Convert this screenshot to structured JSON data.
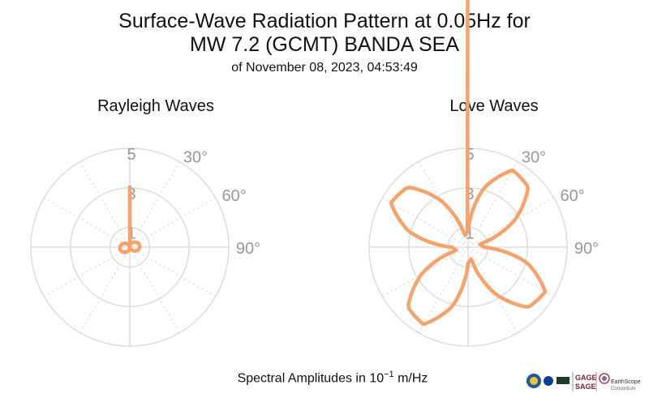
{
  "title_line1": "Surface-Wave Radiation Pattern at 0.05Hz for",
  "title_line2": "MW 7.2 (GCMT) BANDA SEA",
  "subtitle": "of November 08, 2023, 04:53:49",
  "footer": {
    "prefix": "Spectral Amplitudes in 10",
    "exponent": "−1",
    "suffix": " m/Hz"
  },
  "logos": {
    "gage": "GAGE",
    "sage": "SAGE",
    "earthscope": "EarthScope",
    "consortium": "Consortium"
  },
  "chart_data": [
    {
      "type": "polar-line",
      "title": "Rayleigh Waves",
      "radial_ticks": [
        1,
        3,
        5
      ],
      "radial_max": 5,
      "angular_ticks": [
        "30°",
        "60°",
        "90°"
      ],
      "color": "#f5a26b",
      "grid": true,
      "theta_deg": [
        0,
        15,
        30,
        45,
        60,
        75,
        90,
        105,
        120,
        135,
        150,
        165,
        180,
        195,
        210,
        225,
        240,
        255,
        270,
        285,
        300,
        315,
        330,
        345
      ],
      "r": [
        0.0,
        0.13,
        0.26,
        0.37,
        0.45,
        0.5,
        0.5,
        0.45,
        0.37,
        0.26,
        0.13,
        0.0,
        0.0,
        0.13,
        0.26,
        0.37,
        0.45,
        0.5,
        0.5,
        0.45,
        0.37,
        0.26,
        0.13,
        0.0
      ]
    },
    {
      "type": "polar-line",
      "title": "Love Waves",
      "radial_ticks": [
        1,
        3,
        5
      ],
      "radial_max": 5,
      "angular_ticks": [
        "30°",
        "60°",
        "90°"
      ],
      "color": "#f5a26b",
      "grid": true,
      "theta_deg": [
        0,
        15,
        30,
        45,
        60,
        75,
        90,
        105,
        120,
        135,
        150,
        165,
        180,
        195,
        210,
        225,
        240,
        255,
        270,
        285,
        300,
        315,
        330,
        345
      ],
      "r": [
        0.8,
        3.1,
        4.5,
        4.3,
        2.7,
        0.6,
        0.8,
        3.1,
        4.5,
        4.3,
        2.7,
        0.6,
        0.8,
        3.1,
        4.5,
        4.3,
        2.7,
        0.6,
        0.8,
        3.1,
        4.5,
        4.3,
        2.7,
        0.6
      ]
    }
  ]
}
